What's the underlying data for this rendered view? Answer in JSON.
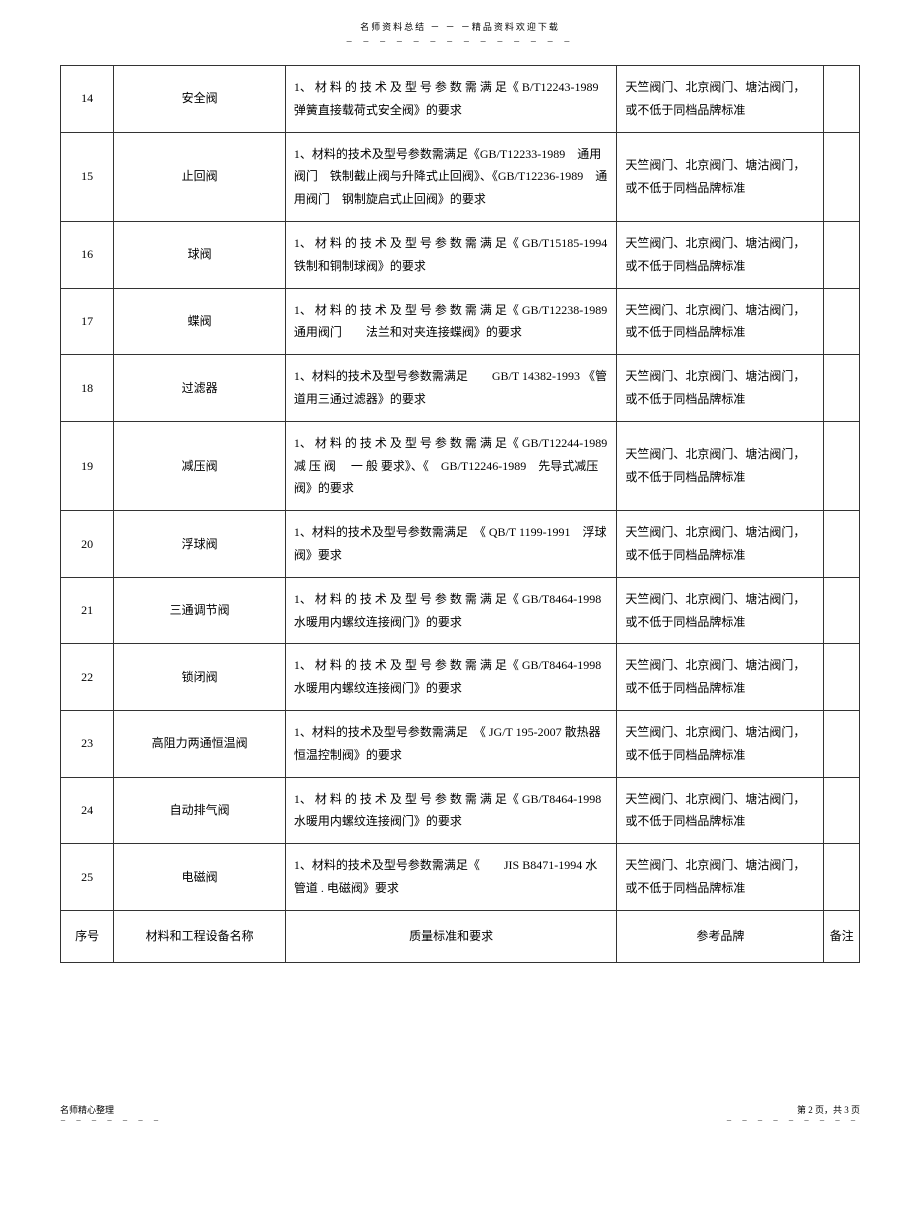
{
  "header": {
    "title": "名师资料总结 － － －精品资料欢迎下载",
    "dots": "－ － － － － － － － － － － － － －"
  },
  "table": {
    "columns": {
      "num": "序号",
      "name": "材料和工程设备名称",
      "std": "质量标准和要求",
      "brand": "参考品牌",
      "note": "备注"
    },
    "rows": [
      {
        "num": "14",
        "name": "安全阀",
        "std": "1、 材 料 的 技 术 及 型 号 参 数 需 满 足《 B/T12243-1989　弹簧直接载荷式安全阀》的要求",
        "brand": "天竺阀门、北京阀门、塘沽阀门，或不低于同档品牌标准",
        "note": ""
      },
      {
        "num": "15",
        "name": "止回阀",
        "std": "1、材料的技术及型号参数需满足《GB/T12233-1989　通用阀门　铁制截止阀与升降式止回阀》、《GB/T12236-1989　通用阀门　钢制旋启式止回阀》的要求",
        "brand": "天竺阀门、北京阀门、塘沽阀门，或不低于同档品牌标准",
        "note": ""
      },
      {
        "num": "16",
        "name": "球阀",
        "std": "1、 材 料 的 技 术 及 型 号 参 数 需 满 足《 GB/T15185-1994　铁制和铜制球阀》的要求",
        "brand": "天竺阀门、北京阀门、塘沽阀门，或不低于同档品牌标准",
        "note": ""
      },
      {
        "num": "17",
        "name": "蝶阀",
        "std": "1、 材 料 的 技 术 及 型 号 参 数 需 满 足《 GB/T12238-1989　通用阀门　　法兰和对夹连接蝶阀》的要求",
        "brand": "天竺阀门、北京阀门、塘沽阀门，或不低于同档品牌标准",
        "note": ""
      },
      {
        "num": "18",
        "name": "过滤器",
        "std": "1、材料的技术及型号参数需满足　　GB/T 14382-1993 《管道用三通过滤器》的要求",
        "brand": "天竺阀门、北京阀门、塘沽阀门，或不低于同档品牌标准",
        "note": ""
      },
      {
        "num": "19",
        "name": "减压阀",
        "std": "1、 材 料 的 技 术 及 型 号 参 数 需 满 足《 GB/T12244-1989　减 压 阀　 一 般 要求》、《　GB/T12246-1989　先导式减压阀》的要求",
        "brand": "天竺阀门、北京阀门、塘沽阀门，或不低于同档品牌标准",
        "note": ""
      },
      {
        "num": "20",
        "name": "浮球阀",
        "std": "1、材料的技术及型号参数需满足　《 QB/T 1199-1991　浮球阀》要求",
        "brand": "天竺阀门、北京阀门、塘沽阀门，或不低于同档品牌标准",
        "note": ""
      },
      {
        "num": "21",
        "name": "三通调节阀",
        "std": "1、 材 料 的 技 术 及 型 号 参 数 需 满 足《 GB/T8464-1998　水暖用内螺纹连接阀门》的要求",
        "brand": "天竺阀门、北京阀门、塘沽阀门，或不低于同档品牌标准",
        "note": ""
      },
      {
        "num": "22",
        "name": "锁闭阀",
        "std": "1、 材 料 的 技 术 及 型 号 参 数 需 满 足《 GB/T8464-1998　水暖用内螺纹连接阀门》的要求",
        "brand": "天竺阀门、北京阀门、塘沽阀门，或不低于同档品牌标准",
        "note": ""
      },
      {
        "num": "23",
        "name": "高阻力两通恒温阀",
        "std": "1、材料的技术及型号参数需满足　《 JG/T 195-2007 散热器恒温控制阀》的要求",
        "brand": "天竺阀门、北京阀门、塘沽阀门，或不低于同档品牌标准",
        "note": ""
      },
      {
        "num": "24",
        "name": "自动排气阀",
        "std": "1、 材 料 的 技 术 及 型 号 参 数 需 满 足《 GB/T8464-1998　水暖用内螺纹连接阀门》的要求",
        "brand": "天竺阀门、北京阀门、塘沽阀门，或不低于同档品牌标准",
        "note": ""
      },
      {
        "num": "25",
        "name": "电磁阀",
        "std": "1、材料的技术及型号参数需满足《　　JIS B8471-1994 水管道 . 电磁阀》要求",
        "brand": "天竺阀门、北京阀门、塘沽阀门，或不低于同档品牌标准",
        "note": ""
      }
    ]
  },
  "footer": {
    "left": "名师精心整理",
    "left_dots": "－ － － － － － －",
    "right": "第 2 页，共 3 页",
    "right_dots": "－ － － － － － － － －"
  }
}
